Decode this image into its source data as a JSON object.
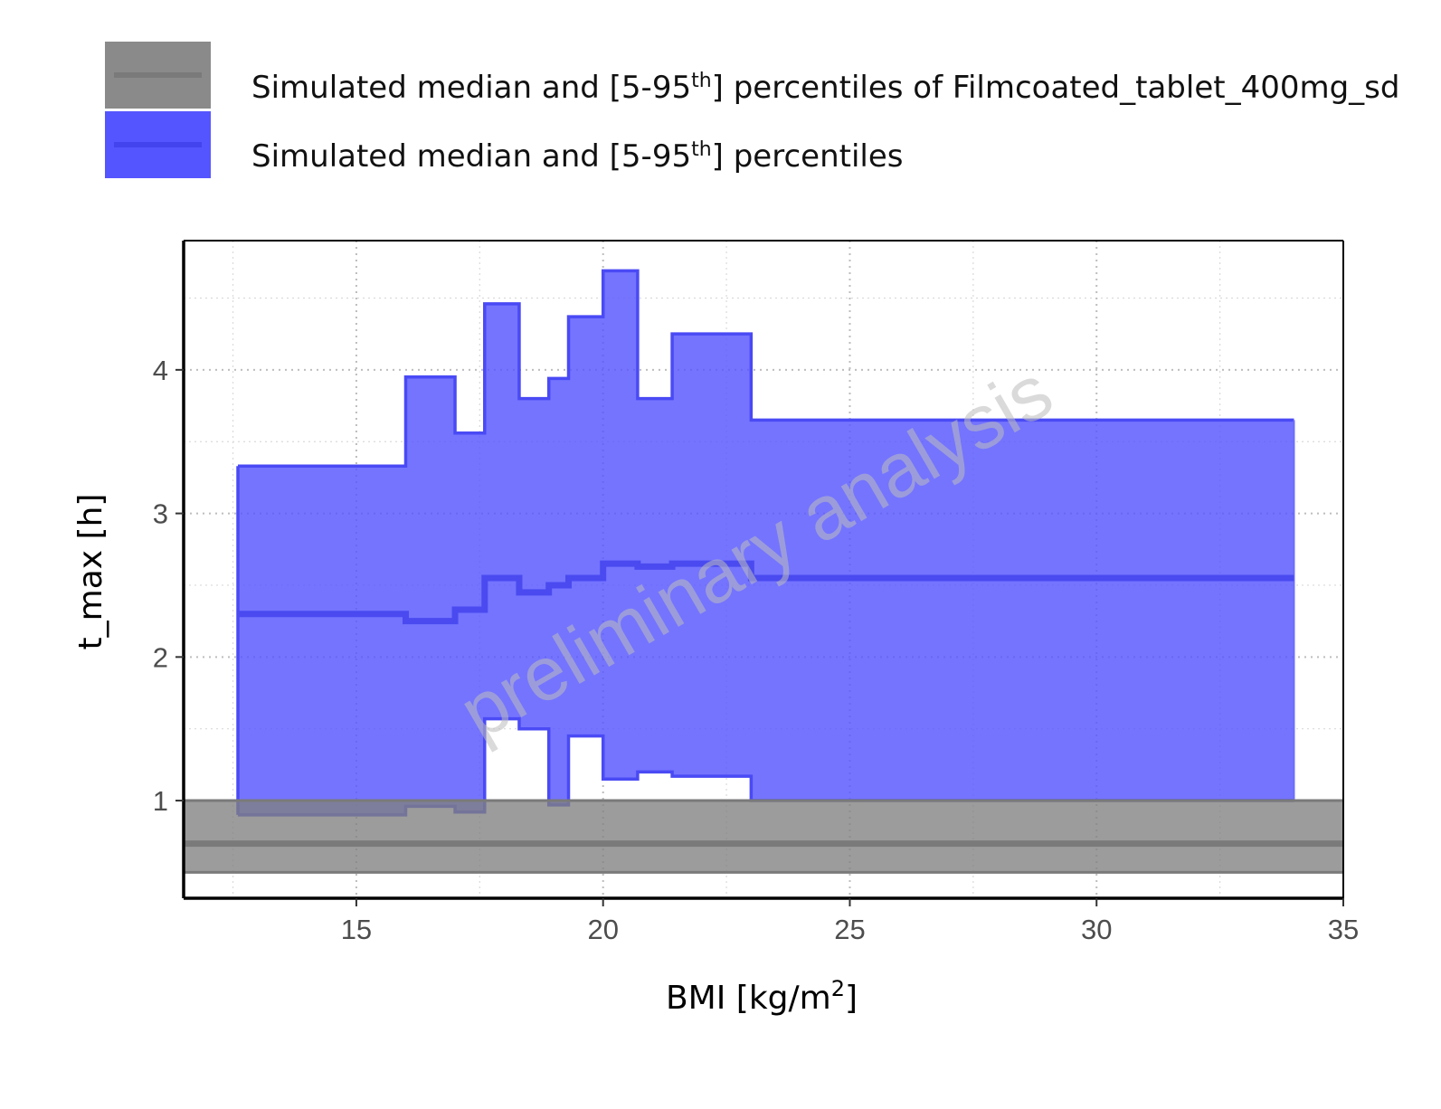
{
  "chart_data": {
    "type": "area",
    "xlabel": "BMI [kg/m",
    "xlabel_sup": "2",
    "xlabel_end": "]",
    "ylabel": "t_max [h]",
    "xlim": [
      11.5,
      35
    ],
    "ylim": [
      0.32,
      4.9
    ],
    "xticks": [
      15,
      20,
      25,
      30,
      35
    ],
    "yticks": [
      1,
      2,
      3,
      4
    ],
    "grid": true,
    "legend_position": "top",
    "legend": [
      {
        "prefix": "Simulated median and [5-95",
        "sup": "th",
        "suffix": "] percentiles of Filmcoated_tablet_400mg_sd",
        "color": "#808080"
      },
      {
        "prefix": "Simulated median and [5-95",
        "sup": "th",
        "suffix": "] percentiles",
        "color": "#5555ff"
      }
    ],
    "watermark": "preliminary analysis",
    "series": [
      {
        "name": "Simulated median and [5-95th] percentiles of Filmcoated_tablet_400mg_sd",
        "color": "#808080",
        "x": [
          11.5,
          35
        ],
        "median": [
          0.7,
          0.7
        ],
        "lower": [
          0.5,
          0.5
        ],
        "upper": [
          1.0,
          1.0
        ]
      },
      {
        "name": "Simulated median and [5-95th] percentiles",
        "color": "#5555ff",
        "step_edges": [
          12.6,
          16.0,
          17.0,
          17.6,
          18.3,
          18.9,
          19.3,
          20.0,
          20.7,
          21.4,
          23.0,
          34.0
        ],
        "median": [
          2.3,
          2.25,
          2.33,
          2.55,
          2.45,
          2.5,
          2.55,
          2.65,
          2.63,
          2.65,
          2.55
        ],
        "lower": [
          0.9,
          0.96,
          0.92,
          1.57,
          1.5,
          0.97,
          1.45,
          1.15,
          1.2,
          1.17,
          1.0
        ],
        "upper": [
          3.33,
          3.95,
          3.56,
          4.46,
          3.8,
          3.94,
          4.37,
          4.69,
          3.8,
          4.25,
          3.65
        ]
      }
    ]
  },
  "colors": {
    "reference_band": "#808080",
    "simulated_band": "#5555ff",
    "grid": "#c8c8c8",
    "axis": "#000000"
  }
}
